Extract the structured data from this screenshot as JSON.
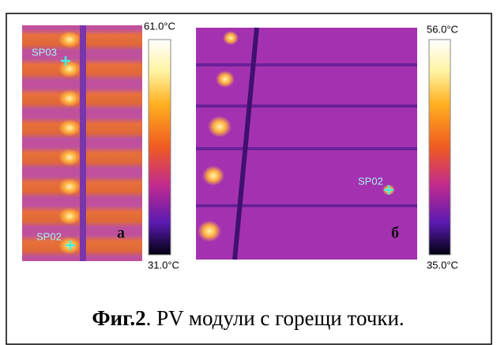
{
  "figure": {
    "panels": [
      {
        "colorbar_max": "61.0°C",
        "colorbar_min": "31.0°C",
        "spots": [
          "SP03",
          "SP02"
        ],
        "label": "а"
      },
      {
        "colorbar_max": "56.0°C",
        "colorbar_min": "35.0°C",
        "spots": [
          "SP02"
        ],
        "label": "б"
      }
    ],
    "caption": {
      "number": "Фиг.2",
      "text": ". PV модули с горещи точки."
    }
  }
}
